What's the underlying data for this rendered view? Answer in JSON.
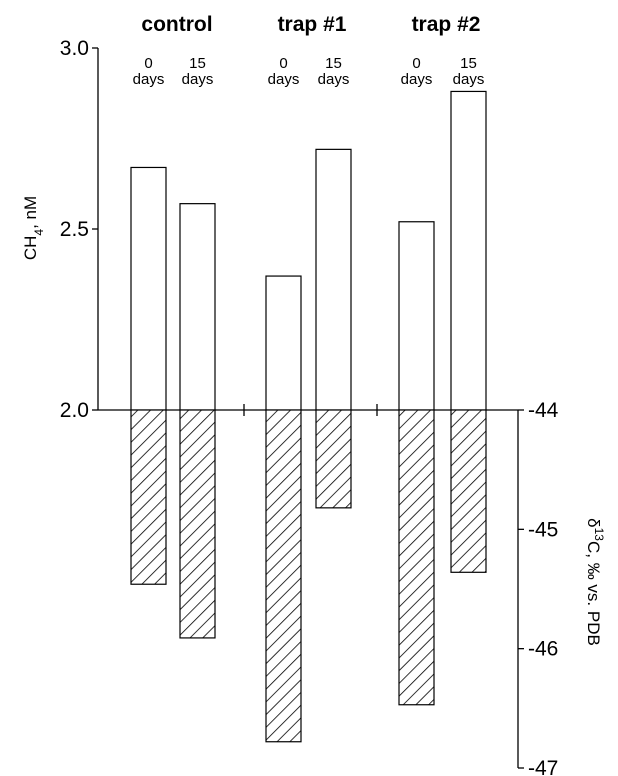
{
  "chart_data": {
    "type": "bar",
    "groups": [
      {
        "name": "control",
        "categories": [
          "0\ndays",
          "15\ndays"
        ]
      },
      {
        "name": "trap #1",
        "categories": [
          "0\ndays",
          "15\ndays"
        ]
      },
      {
        "name": "trap #2",
        "categories": [
          "0\ndays",
          "15\ndays"
        ]
      }
    ],
    "series": [
      {
        "axis": "left",
        "style": "open",
        "values": [
          2.67,
          2.57,
          2.37,
          2.72,
          2.52,
          2.88
        ]
      },
      {
        "axis": "right",
        "style": "hatched",
        "values": [
          -45.46,
          -45.91,
          -46.78,
          -44.82,
          -46.47,
          -45.36
        ]
      }
    ],
    "left_axis": {
      "label": "CH4, nM",
      "label_main": "CH",
      "label_sub": "4",
      "label_rest": ", nM",
      "range": [
        2.0,
        3.0
      ],
      "ticks": [
        "2.0",
        "2.5",
        "3.0"
      ]
    },
    "right_axis": {
      "label": "δ13C, ‰ vs. PDB",
      "label_delta": "δ",
      "label_sup": "13",
      "label_rest": "C, ‰ vs. PDB",
      "range": [
        -44,
        -47
      ],
      "ticks": [
        "-44",
        "-45",
        "-46",
        "-47"
      ]
    },
    "grid": false,
    "legend": "none"
  }
}
